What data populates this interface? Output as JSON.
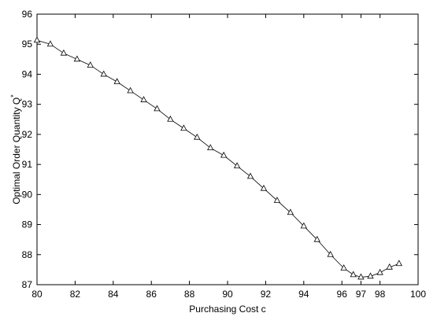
{
  "chart_data": {
    "type": "line",
    "xlabel": "Purchasing Cost c",
    "ylabel": "Optimal Order Quantity Q",
    "ylabel_superscript": "*",
    "x": [
      80,
      80.7,
      81.4,
      82.1,
      82.8,
      83.5,
      84.2,
      84.9,
      85.6,
      86.3,
      87.0,
      87.7,
      88.4,
      89.1,
      89.8,
      90.5,
      91.2,
      91.9,
      92.6,
      93.3,
      94.0,
      94.7,
      95.4,
      96.1,
      96.6,
      97.0,
      97.5,
      98.0,
      98.5,
      99.0
    ],
    "series": [
      {
        "color": "#000000",
        "marker": "triangle",
        "values": [
          95.13,
          95.0,
          94.7,
          94.5,
          94.3,
          94.0,
          93.75,
          93.45,
          93.15,
          92.85,
          92.5,
          92.2,
          91.9,
          91.55,
          91.3,
          90.95,
          90.6,
          90.2,
          89.8,
          89.4,
          88.95,
          88.5,
          88.0,
          87.55,
          87.33,
          87.25,
          87.28,
          87.4,
          87.58,
          87.7
        ]
      }
    ],
    "xlim": [
      80,
      100
    ],
    "xticks": [
      80,
      82,
      84,
      86,
      88,
      90,
      92,
      94,
      96,
      97,
      98,
      100
    ],
    "ylim": [
      87,
      96
    ],
    "yticks": [
      87,
      88,
      89,
      90,
      91,
      92,
      93,
      94,
      95,
      96
    ],
    "grid": false
  }
}
